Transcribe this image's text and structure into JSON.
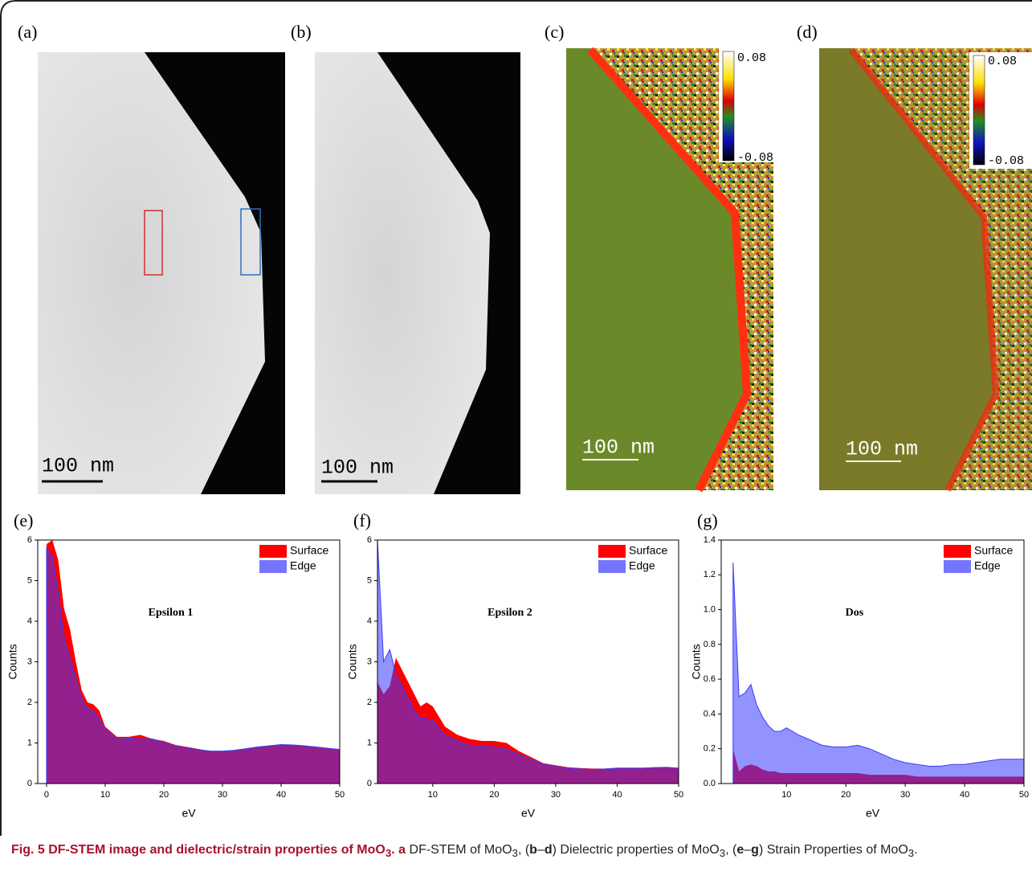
{
  "images": [
    {
      "label": "(a)",
      "scale_bar": "100 nm"
    },
    {
      "label": "(b)",
      "scale_bar": "100 nm"
    },
    {
      "label": "(c)",
      "scale_bar": "100 nm",
      "colorbar_max": "0.08",
      "colorbar_min": "-0.08"
    },
    {
      "label": "(d)",
      "scale_bar": "100 nm",
      "colorbar_max": "0.08",
      "colorbar_min": "-0.08"
    }
  ],
  "chart_data": [
    {
      "type": "area",
      "label": "(e)",
      "annotation": "Epsilon 1",
      "x_label": "eV",
      "y_label": "Counts",
      "x": [
        0,
        1,
        2,
        3,
        4,
        5,
        6,
        7,
        8,
        9,
        10,
        12,
        14,
        16,
        18,
        20,
        22,
        24,
        26,
        28,
        30,
        32,
        34,
        36,
        38,
        40,
        42,
        44,
        46,
        48,
        50
      ],
      "series": [
        {
          "name": "Surface",
          "color": "#ff0000",
          "values": [
            5.9,
            6,
            5.5,
            4.3,
            3.8,
            3.0,
            2.3,
            2.0,
            1.95,
            1.8,
            1.4,
            1.15,
            1.15,
            1.2,
            1.1,
            1.05,
            0.95,
            0.9,
            0.85,
            0.8,
            0.8,
            0.82,
            0.85,
            0.9,
            0.93,
            0.95,
            0.95,
            0.93,
            0.9,
            0.87,
            0.83
          ]
        },
        {
          "name": "Edge",
          "color": "#3a3aff",
          "values": [
            5.8,
            5.6,
            4.7,
            3.6,
            3.1,
            2.6,
            2.1,
            1.85,
            1.8,
            1.6,
            1.35,
            1.1,
            1.12,
            1.1,
            1.1,
            1.02,
            0.92,
            0.88,
            0.83,
            0.8,
            0.8,
            0.82,
            0.86,
            0.9,
            0.93,
            0.96,
            0.95,
            0.93,
            0.9,
            0.87,
            0.84
          ]
        }
      ],
      "xlim": [
        -1.5,
        50
      ],
      "xticks": [
        0,
        10,
        20,
        30,
        40,
        50
      ],
      "ylim": [
        0,
        6
      ],
      "yticks": [
        0,
        1,
        2,
        3,
        4,
        5,
        6
      ],
      "legend": "upper right"
    },
    {
      "type": "area",
      "label": "(f)",
      "annotation": "Epsilon 2",
      "x_label": "eV",
      "y_label": "Counts",
      "x": [
        1,
        2,
        3,
        4,
        5,
        6,
        7,
        8,
        9,
        10,
        12,
        14,
        16,
        18,
        20,
        22,
        24,
        26,
        28,
        30,
        32,
        34,
        36,
        38,
        40,
        42,
        44,
        46,
        48,
        50
      ],
      "series": [
        {
          "name": "Surface",
          "color": "#ff0000",
          "values": [
            2.5,
            2.2,
            2.4,
            3.1,
            2.8,
            2.5,
            2.2,
            1.9,
            2.0,
            1.9,
            1.4,
            1.2,
            1.1,
            1.05,
            1.05,
            1.0,
            0.8,
            0.65,
            0.5,
            0.45,
            0.4,
            0.38,
            0.37,
            0.37,
            0.38,
            0.38,
            0.38,
            0.4,
            0.4,
            0.38
          ]
        },
        {
          "name": "Edge",
          "color": "#3a3aff",
          "values": [
            6,
            3.0,
            3.3,
            2.7,
            2.4,
            2.1,
            1.8,
            1.6,
            1.6,
            1.55,
            1.2,
            1.05,
            0.95,
            0.92,
            0.9,
            0.85,
            0.72,
            0.6,
            0.48,
            0.42,
            0.38,
            0.36,
            0.35,
            0.36,
            0.38,
            0.38,
            0.38,
            0.39,
            0.4,
            0.38
          ]
        }
      ],
      "xlim": [
        1,
        50
      ],
      "xticks": [
        10,
        20,
        30,
        40,
        50
      ],
      "ylim": [
        0,
        6
      ],
      "yticks": [
        0,
        1,
        2,
        3,
        4,
        5,
        6
      ],
      "legend": "upper right"
    },
    {
      "type": "area",
      "label": "(g)",
      "annotation": "Dos",
      "x_label": "eV",
      "y_label": "Counts",
      "x": [
        1,
        2,
        3,
        4,
        5,
        6,
        7,
        8,
        9,
        10,
        12,
        14,
        16,
        18,
        20,
        22,
        24,
        26,
        28,
        30,
        32,
        34,
        36,
        38,
        40,
        42,
        44,
        46,
        48,
        50
      ],
      "series": [
        {
          "name": "Surface",
          "color": "#ff0000",
          "values": [
            0.2,
            0.07,
            0.1,
            0.11,
            0.1,
            0.08,
            0.07,
            0.07,
            0.06,
            0.06,
            0.06,
            0.06,
            0.06,
            0.06,
            0.06,
            0.06,
            0.05,
            0.05,
            0.05,
            0.05,
            0.04,
            0.04,
            0.04,
            0.04,
            0.04,
            0.04,
            0.04,
            0.04,
            0.04,
            0.04
          ]
        },
        {
          "name": "Edge",
          "color": "#3a3aff",
          "values": [
            1.27,
            0.5,
            0.52,
            0.57,
            0.45,
            0.38,
            0.33,
            0.3,
            0.3,
            0.32,
            0.28,
            0.25,
            0.22,
            0.21,
            0.21,
            0.22,
            0.2,
            0.17,
            0.14,
            0.12,
            0.11,
            0.1,
            0.1,
            0.11,
            0.11,
            0.12,
            0.13,
            0.14,
            0.14,
            0.14
          ]
        }
      ],
      "xlim": [
        -1,
        50
      ],
      "xticks": [
        10,
        20,
        30,
        40,
        50
      ],
      "ylim": [
        0,
        1.4
      ],
      "yticks": [
        {
          "value": 0,
          "label": "0.0"
        },
        0.2,
        0.4,
        0.6,
        0.8,
        {
          "value": 1,
          "label": "1.0"
        },
        1.2,
        1.4
      ],
      "legend": "upper right"
    }
  ],
  "caption": [
    "Fig. 5 DF-STEM image and dielectric/strain properties of MoO",
    "3",
    ". a",
    " DF-STEM of MoO",
    "3",
    ", (",
    "b",
    "–",
    "d",
    ") Dielectric properties of MoO",
    "3",
    ", (",
    "e",
    "–",
    "g",
    ") Strain Properties of MoO",
    "3",
    "."
  ]
}
